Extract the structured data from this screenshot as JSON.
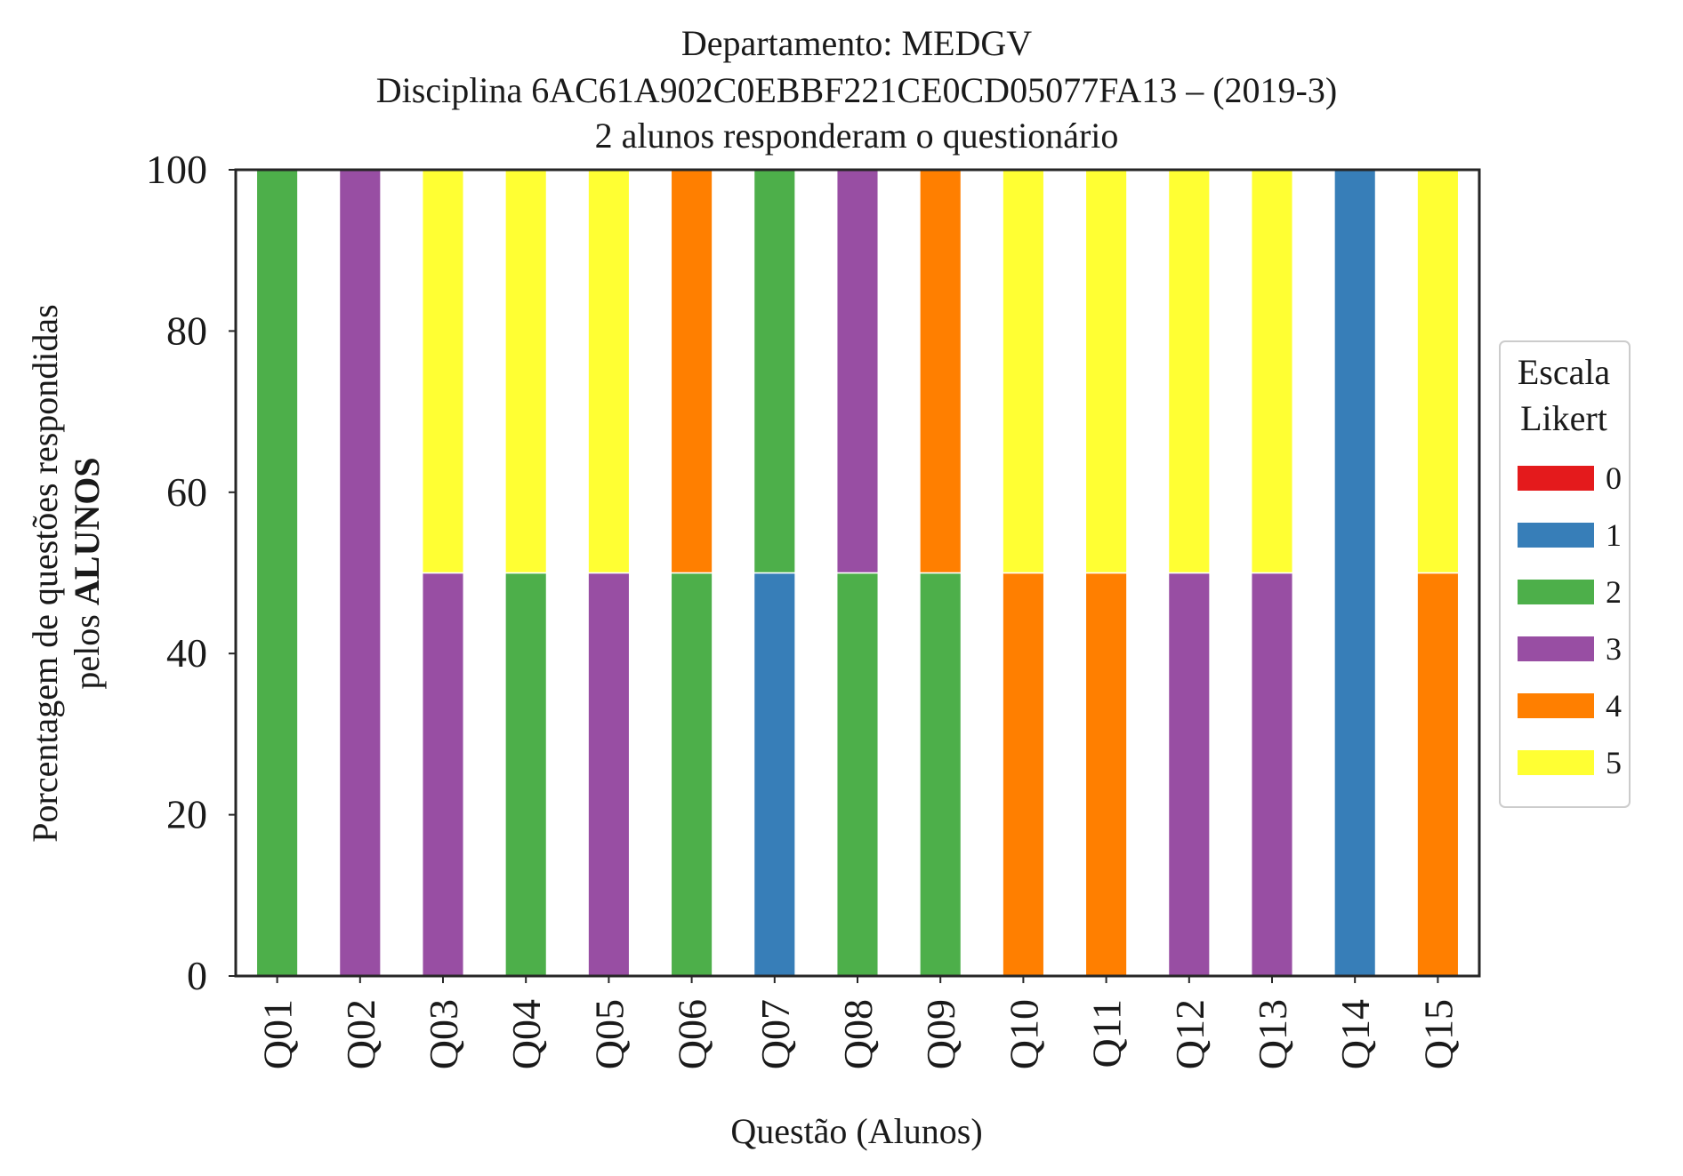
{
  "chart_data": {
    "type": "bar",
    "stacked": true,
    "title_lines": [
      "Departamento: MEDGV",
      "Disciplina 6AC61A902C0EBBF221CE0CD05077FA13 – (2019-3)",
      "2 alunos responderam o questionário"
    ],
    "xlabel": "Questão (Alunos)",
    "ylabel_line1": "Porcentagem de questões respondidas",
    "ylabel_line2_prefix": "pelos ",
    "ylabel_line2_bold": "ALUNOS",
    "ylim": [
      0,
      100
    ],
    "yticks": [
      0,
      20,
      40,
      60,
      80,
      100
    ],
    "grid": false,
    "categories": [
      "Q01",
      "Q02",
      "Q03",
      "Q04",
      "Q05",
      "Q06",
      "Q07",
      "Q08",
      "Q09",
      "Q10",
      "Q11",
      "Q12",
      "Q13",
      "Q14",
      "Q15"
    ],
    "legend": {
      "title_lines": [
        "Escala",
        "Likert"
      ],
      "placement": "right-center"
    },
    "series": [
      {
        "name": "0",
        "color": "#e41a1c",
        "values": [
          0,
          0,
          0,
          0,
          0,
          0,
          0,
          0,
          0,
          0,
          0,
          0,
          0,
          0,
          0
        ]
      },
      {
        "name": "1",
        "color": "#377eb8",
        "values": [
          0,
          0,
          0,
          0,
          0,
          0,
          50,
          0,
          0,
          0,
          0,
          0,
          0,
          100,
          0
        ]
      },
      {
        "name": "2",
        "color": "#4daf4a",
        "values": [
          100,
          0,
          0,
          50,
          0,
          50,
          50,
          50,
          50,
          0,
          0,
          0,
          0,
          0,
          0
        ]
      },
      {
        "name": "3",
        "color": "#984ea3",
        "values": [
          0,
          100,
          50,
          0,
          50,
          0,
          0,
          50,
          0,
          0,
          0,
          50,
          50,
          0,
          0
        ]
      },
      {
        "name": "4",
        "color": "#ff7f00",
        "values": [
          0,
          0,
          0,
          0,
          0,
          50,
          0,
          0,
          50,
          50,
          50,
          0,
          0,
          0,
          50
        ]
      },
      {
        "name": "5",
        "color": "#ffff33",
        "values": [
          0,
          0,
          50,
          50,
          50,
          0,
          0,
          0,
          0,
          50,
          50,
          50,
          50,
          0,
          50
        ]
      }
    ]
  }
}
